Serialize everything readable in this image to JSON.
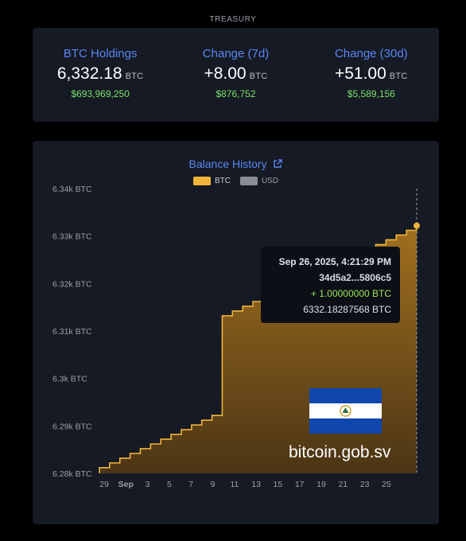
{
  "section_title": "TREASURY",
  "stats": [
    {
      "label": "BTC Holdings",
      "value": "6,332.18",
      "unit": "BTC",
      "usd": "$693,969,250"
    },
    {
      "label": "Change (7d)",
      "value": "+8.00",
      "unit": "BTC",
      "usd": "$876,752"
    },
    {
      "label": "Change (30d)",
      "value": "+51.00",
      "unit": "BTC",
      "usd": "$5,589,156"
    }
  ],
  "chart": {
    "title": "Balance History",
    "legend": [
      {
        "label": "BTC",
        "color": "#f0b43a",
        "active": true
      },
      {
        "label": "USD",
        "color": "#8a8d93",
        "active": false
      }
    ],
    "tooltip": {
      "date": "Sep 26, 2025, 4:21:29 PM",
      "tx": "34d5a2...5806c5",
      "delta": "+ 1.00000000 BTC",
      "balance": "6332.18287568 BTC"
    },
    "watermark": "bitcoin.gob.sv",
    "flag_colors": {
      "blue": "#0f47af",
      "white": "#ffffff",
      "emblem": "#c9a227"
    }
  },
  "chart_data": {
    "type": "area",
    "series": [
      {
        "values": [
          6281.2,
          6282.2,
          6283.2,
          6284.2,
          6285.2,
          6286.2,
          6287.2,
          6288.2,
          6289.2,
          6290.2,
          6291.2,
          6292.2,
          6313.2,
          6314.2,
          6315.2,
          6316.2,
          6317.2,
          6318.2,
          6319.2,
          6320.2,
          6321.2,
          6322.2,
          6323.2,
          6324.2,
          6325.2,
          6326.2,
          6327.2,
          6328.2,
          6329.2,
          6330.2,
          6331.2,
          6332.18
        ]
      }
    ],
    "y_ticks": [
      "6.28k BTC",
      "6.29k BTC",
      "6.3k BTC",
      "6.31k BTC",
      "6.32k BTC",
      "6.33k BTC",
      "6.34k BTC"
    ],
    "ylim": [
      6280,
      6340
    ],
    "x_ticks": [
      "29",
      "Sep",
      "3",
      "5",
      "7",
      "9",
      "11",
      "13",
      "15",
      "17",
      "19",
      "21",
      "23",
      "25"
    ],
    "grid": false,
    "legend_position": "top-center"
  }
}
